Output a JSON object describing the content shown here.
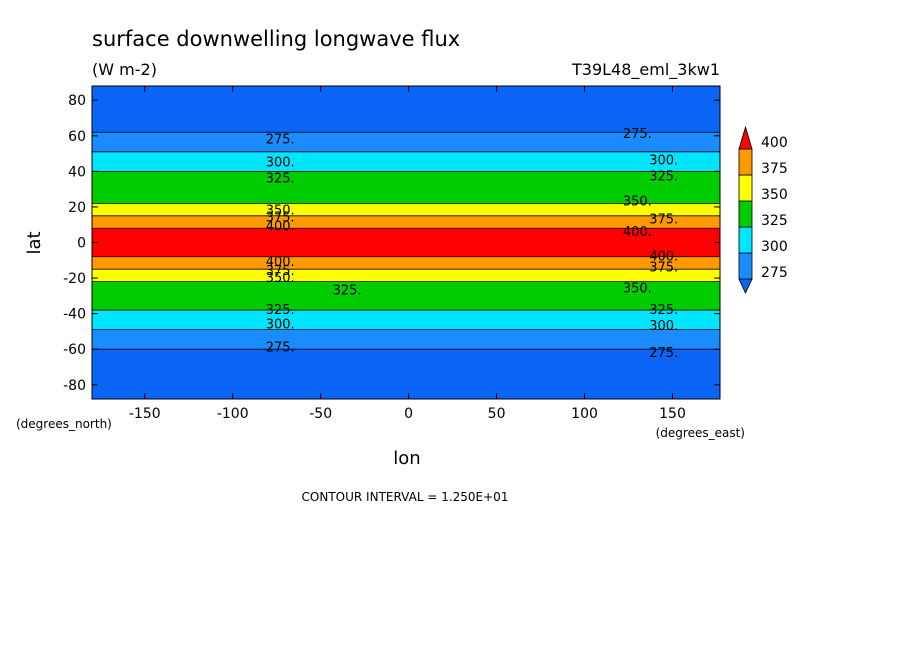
{
  "chart_data": {
    "type": "heatmap",
    "title": "surface downwelling longwave flux",
    "units": "(W m-2)",
    "run_label": "T39L48_eml_3kw1",
    "xlabel": "lon",
    "ylabel": "lat",
    "x_units_label": "(degrees_east)",
    "y_units_label": "(degrees_north)",
    "xlim": [
      -180,
      177
    ],
    "ylim": [
      -88,
      88
    ],
    "x_ticks": [
      -150,
      -100,
      -50,
      0,
      50,
      100,
      150
    ],
    "y_ticks": [
      80,
      60,
      40,
      20,
      0,
      -20,
      -40,
      -60,
      -80
    ],
    "x_tick_labels": [
      "-150",
      "-100",
      "-50",
      "0",
      "50",
      "100",
      "150"
    ],
    "y_tick_labels": [
      "80",
      "60",
      "40",
      "20",
      "0",
      "-20",
      "-40",
      "-60",
      "-80"
    ],
    "contour_interval_label": "CONTOUR INTERVAL = 1.250E+01",
    "colorbar": {
      "levels": [
        275,
        300,
        325,
        350,
        375,
        400
      ],
      "labels": [
        "275",
        "300",
        "325",
        "350",
        "375",
        "400"
      ],
      "colors": [
        "#1a8cff",
        "#00e5ff",
        "#00cc00",
        "#ffff00",
        "#ff9900",
        "#ff0000"
      ],
      "under_color": "#0a64f5",
      "over_color": "#ff0000"
    },
    "bands": [
      {
        "lat_from": 88,
        "lat_to": 62,
        "level": "<275",
        "color": "#0a64f5"
      },
      {
        "lat_from": 62,
        "lat_to": 51,
        "level": "275-300",
        "color": "#1a8cff"
      },
      {
        "lat_from": 51,
        "lat_to": 40,
        "level": "300-325",
        "color": "#00e5ff"
      },
      {
        "lat_from": 40,
        "lat_to": 22,
        "level": "325-350",
        "color": "#00cc00"
      },
      {
        "lat_from": 22,
        "lat_to": 15,
        "level": "350-375",
        "color": "#ffff00"
      },
      {
        "lat_from": 15,
        "lat_to": 8,
        "level": "375-400",
        "color": "#ff9900"
      },
      {
        "lat_from": 8,
        "lat_to": -8,
        "level": ">400",
        "color": "#ff0000"
      },
      {
        "lat_from": -8,
        "lat_to": -15,
        "level": "375-400",
        "color": "#ff9900"
      },
      {
        "lat_from": -15,
        "lat_to": -22,
        "level": "350-375",
        "color": "#ffff00"
      },
      {
        "lat_from": -22,
        "lat_to": -38,
        "level": "325-350",
        "color": "#00cc00"
      },
      {
        "lat_from": -38,
        "lat_to": -49,
        "level": "300-325",
        "color": "#00e5ff"
      },
      {
        "lat_from": -49,
        "lat_to": -60,
        "level": "275-300",
        "color": "#1a8cff"
      },
      {
        "lat_from": -60,
        "lat_to": -88,
        "level": "<275",
        "color": "#0a64f5"
      }
    ],
    "contour_labels": [
      {
        "text": "275.",
        "lon": -73,
        "lat": 58
      },
      {
        "text": "300.",
        "lon": -73,
        "lat": 45
      },
      {
        "text": "325.",
        "lon": -73,
        "lat": 36
      },
      {
        "text": "350.",
        "lon": -73,
        "lat": 18
      },
      {
        "text": "375.",
        "lon": -73,
        "lat": 14
      },
      {
        "text": "400.",
        "lon": -73,
        "lat": 9
      },
      {
        "text": "400.",
        "lon": -73,
        "lat": -11
      },
      {
        "text": "375.",
        "lon": -73,
        "lat": -16
      },
      {
        "text": "350.",
        "lon": -73,
        "lat": -20
      },
      {
        "text": "325.",
        "lon": -35,
        "lat": -27
      },
      {
        "text": "325.",
        "lon": -73,
        "lat": -38
      },
      {
        "text": "300.",
        "lon": -73,
        "lat": -46
      },
      {
        "text": "275.",
        "lon": -73,
        "lat": -59
      },
      {
        "text": "275.",
        "lon": 130,
        "lat": 61
      },
      {
        "text": "300.",
        "lon": 145,
        "lat": 46
      },
      {
        "text": "325.",
        "lon": 145,
        "lat": 37
      },
      {
        "text": "350.",
        "lon": 130,
        "lat": 23
      },
      {
        "text": "375.",
        "lon": 145,
        "lat": 13
      },
      {
        "text": "400.",
        "lon": 130,
        "lat": 6
      },
      {
        "text": "400.",
        "lon": 145,
        "lat": -8
      },
      {
        "text": "375.",
        "lon": 145,
        "lat": -14
      },
      {
        "text": "350.",
        "lon": 130,
        "lat": -26
      },
      {
        "text": "325.",
        "lon": 145,
        "lat": -38
      },
      {
        "text": "300.",
        "lon": 145,
        "lat": -47
      },
      {
        "text": "275.",
        "lon": 145,
        "lat": -62
      }
    ]
  }
}
